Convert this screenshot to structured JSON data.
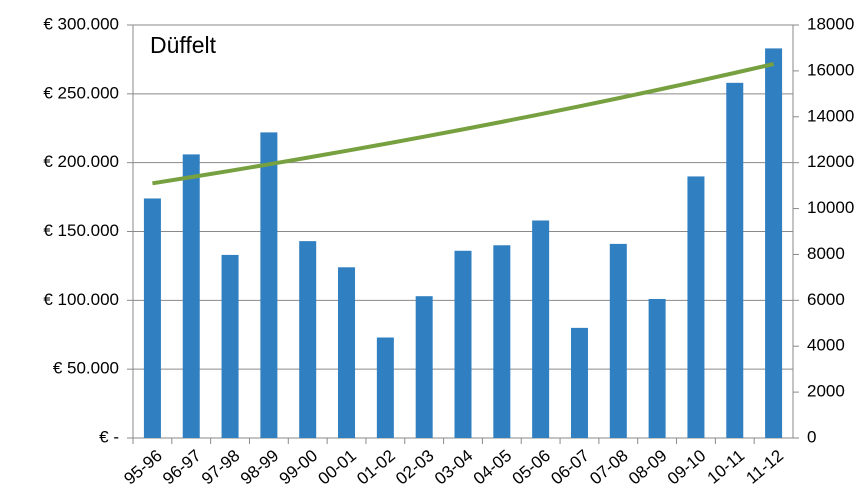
{
  "chart_data": {
    "type": "bar",
    "title": "Düffelt",
    "categories": [
      "95-96",
      "96-97",
      "97-98",
      "98-99",
      "99-00",
      "00-01",
      "01-02",
      "02-03",
      "03-04",
      "04-05",
      "05-06",
      "06-07",
      "07-08",
      "08-09",
      "09-10",
      "10-11",
      "11-12"
    ],
    "series": [
      {
        "type": "bar",
        "color": "#2f7fc1",
        "values": [
          174000,
          206000,
          133000,
          222000,
          143000,
          124000,
          73000,
          103000,
          136000,
          140000,
          158000,
          80000,
          141000,
          101000,
          190000,
          258000,
          283000
        ]
      },
      {
        "type": "line",
        "axis": "y2",
        "color": "#77a040",
        "values": [
          11100,
          11370,
          11646,
          11929,
          12219,
          12516,
          12820,
          13132,
          13451,
          13778,
          14113,
          14456,
          14807,
          15167,
          15536,
          15913,
          16300
        ]
      }
    ],
    "ylim": [
      0,
      300000
    ],
    "yticks": [
      {
        "value": 0,
        "label": "€ -"
      },
      {
        "value": 50000,
        "label": "€ 50.000"
      },
      {
        "value": 100000,
        "label": "€ 100.000"
      },
      {
        "value": 150000,
        "label": "€ 150.000"
      },
      {
        "value": 200000,
        "label": "€ 200.000"
      },
      {
        "value": 250000,
        "label": "€ 250.000"
      },
      {
        "value": 300000,
        "label": "€ 300.000"
      }
    ],
    "y2lim": [
      0,
      18000
    ],
    "y2ticks": [
      0,
      2000,
      4000,
      6000,
      8000,
      10000,
      12000,
      14000,
      16000,
      18000
    ],
    "grid": true
  }
}
